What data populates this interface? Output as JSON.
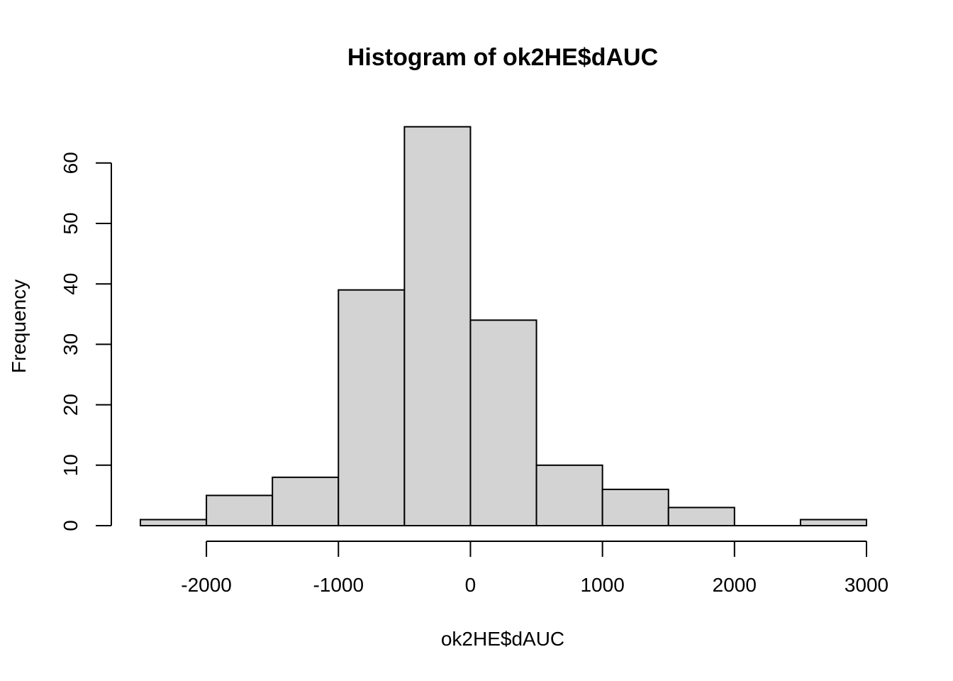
{
  "chart_data": {
    "type": "bar",
    "title": "Histogram of ok2HE$dAUC",
    "xlabel": "ok2HE$dAUC",
    "ylabel": "Frequency",
    "bins": [
      {
        "start": -2500,
        "end": -2000,
        "count": 1
      },
      {
        "start": -2000,
        "end": -1500,
        "count": 5
      },
      {
        "start": -1500,
        "end": -1000,
        "count": 8
      },
      {
        "start": -1000,
        "end": -500,
        "count": 39
      },
      {
        "start": -500,
        "end": 0,
        "count": 66
      },
      {
        "start": 0,
        "end": 500,
        "count": 34
      },
      {
        "start": 500,
        "end": 1000,
        "count": 10
      },
      {
        "start": 1000,
        "end": 1500,
        "count": 6
      },
      {
        "start": 1500,
        "end": 2000,
        "count": 3
      },
      {
        "start": 2000,
        "end": 2500,
        "count": 0
      },
      {
        "start": 2500,
        "end": 3000,
        "count": 1
      }
    ],
    "xticks": [
      -2000,
      -1000,
      0,
      1000,
      2000,
      3000
    ],
    "yticks": [
      0,
      10,
      20,
      30,
      40,
      50,
      60
    ],
    "xlim": [
      -2500,
      3000
    ],
    "ylim": [
      0,
      66
    ],
    "grid": false,
    "colors": {
      "bar_fill": "#d3d3d3",
      "bar_stroke": "#000000"
    }
  }
}
